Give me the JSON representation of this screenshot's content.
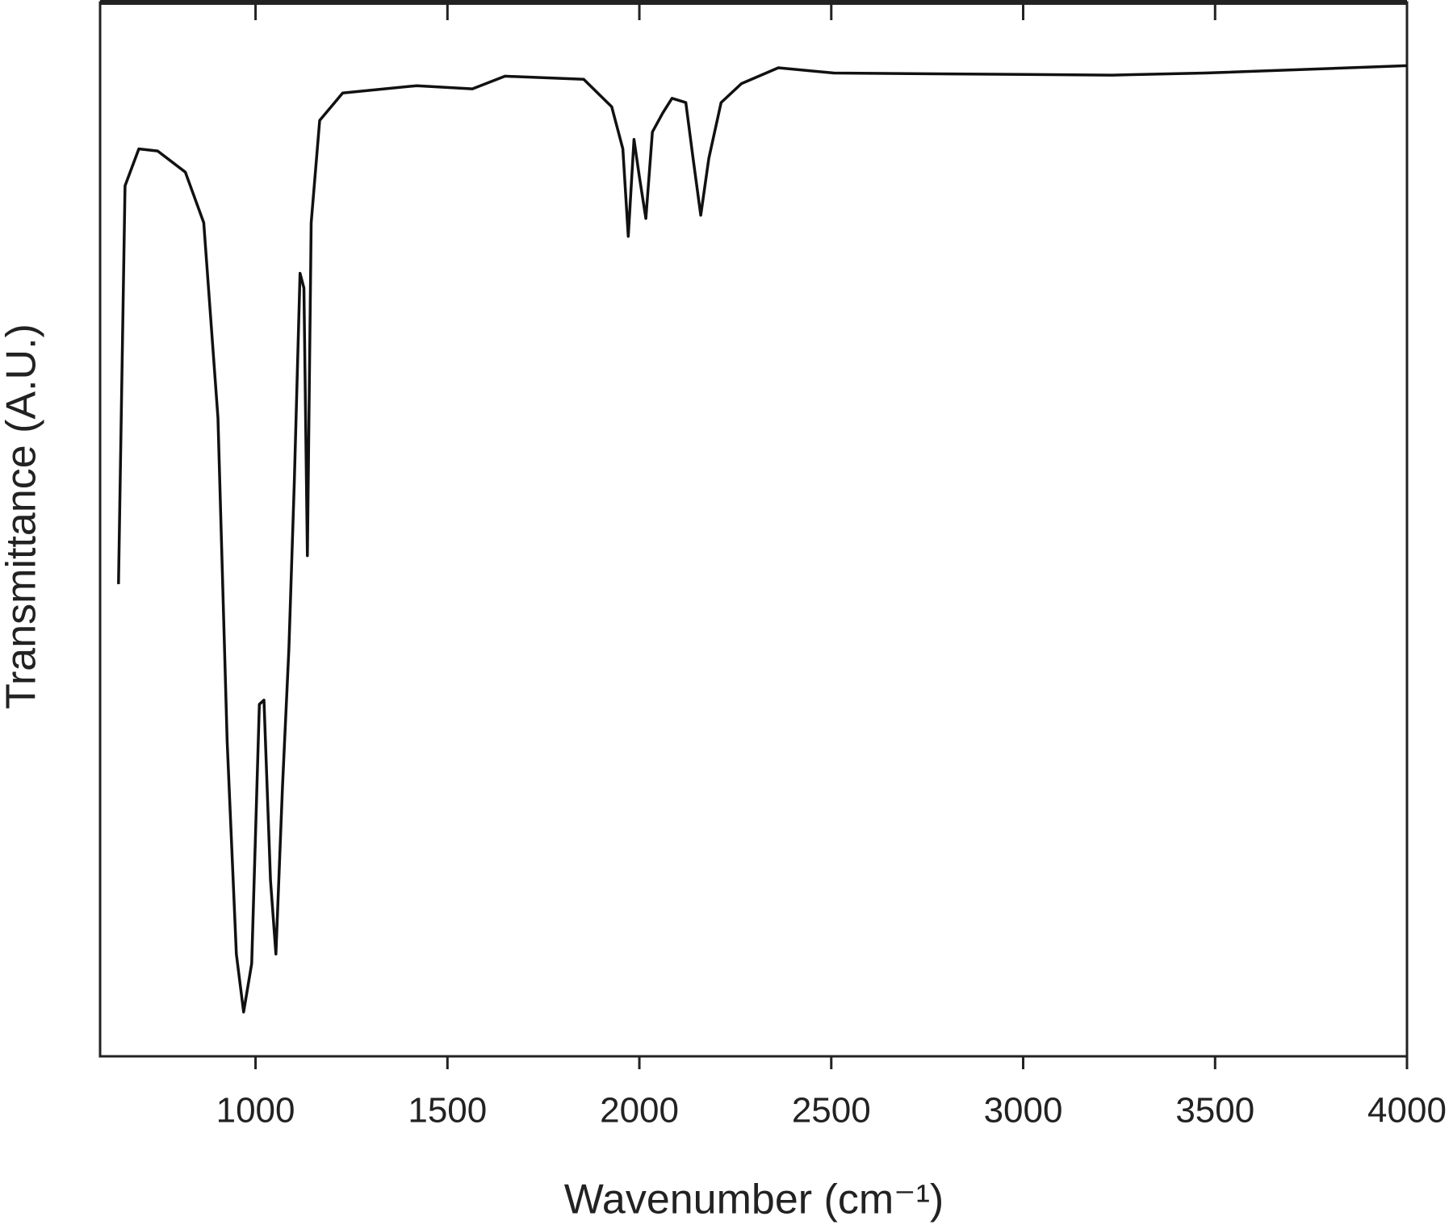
{
  "chart_data": {
    "type": "line",
    "x_label": "Wavenumber (cm⁻¹)",
    "y_label": "Transmittance (A.U.)",
    "xlim": [
      595,
      4000
    ],
    "ylim": [
      0,
      100
    ],
    "xticks": [
      1000,
      1500,
      2000,
      2500,
      3000,
      3500,
      4000
    ],
    "series": [
      {
        "color": "#111111",
        "x": [
          643,
          660,
          696,
          745,
          817,
          865,
          902,
          926,
          950,
          969,
          990,
          1010,
          1022,
          1039,
          1053,
          1070,
          1087,
          1101,
          1116,
          1126,
          1135,
          1145,
          1167,
          1227,
          1420,
          1565,
          1650,
          1855,
          1928,
          1957,
          1971,
          1986,
          2000,
          2017,
          2034,
          2061,
          2085,
          2121,
          2140,
          2160,
          2181,
          2213,
          2266,
          2362,
          2507,
          3232,
          3473,
          4000
        ],
        "values": [
          44.8,
          82.6,
          86.1,
          85.9,
          83.9,
          79.1,
          60.6,
          29.9,
          9.7,
          4.2,
          8.8,
          33.4,
          33.8,
          16.7,
          9.7,
          25.5,
          38.7,
          54.5,
          74.3,
          72.9,
          47.5,
          79.1,
          88.8,
          91.4,
          92.1,
          91.8,
          93.0,
          92.7,
          90.1,
          86.1,
          77.8,
          87.0,
          83.5,
          79.5,
          87.7,
          89.5,
          90.9,
          90.5,
          85.2,
          79.8,
          85.2,
          90.5,
          92.3,
          93.8,
          93.3,
          93.1,
          93.3,
          94.0
        ]
      }
    ]
  }
}
